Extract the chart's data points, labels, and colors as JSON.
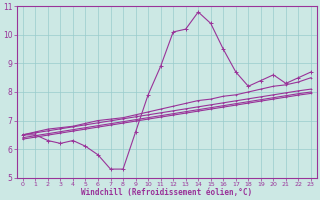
{
  "xlabel": "Windchill (Refroidissement éolien,°C)",
  "bg_color": "#cce8e4",
  "grid_color": "#99cccc",
  "line_color": "#993399",
  "xlim": [
    -0.5,
    23.5
  ],
  "ylim": [
    5,
    11
  ],
  "xticks": [
    0,
    1,
    2,
    3,
    4,
    5,
    6,
    7,
    8,
    9,
    10,
    11,
    12,
    13,
    14,
    15,
    16,
    17,
    18,
    19,
    20,
    21,
    22,
    23
  ],
  "yticks": [
    5,
    6,
    7,
    8,
    9,
    10,
    11
  ],
  "series_main": [
    6.5,
    6.5,
    6.3,
    6.2,
    6.3,
    6.1,
    5.8,
    5.3,
    5.3,
    6.6,
    7.9,
    8.9,
    10.1,
    10.2,
    10.8,
    10.4,
    9.5,
    8.7,
    8.2,
    8.4,
    8.6,
    8.3,
    8.5,
    8.7
  ],
  "series_linear": [
    [
      6.5,
      6.6,
      6.7,
      6.75,
      6.8,
      6.9,
      7.0,
      7.05,
      7.1,
      7.2,
      7.3,
      7.4,
      7.5,
      7.6,
      7.7,
      7.75,
      7.85,
      7.9,
      8.0,
      8.1,
      8.2,
      8.25,
      8.35,
      8.5
    ],
    [
      6.5,
      6.57,
      6.64,
      6.71,
      6.78,
      6.85,
      6.92,
      6.99,
      7.06,
      7.13,
      7.2,
      7.27,
      7.34,
      7.41,
      7.48,
      7.55,
      7.62,
      7.69,
      7.76,
      7.83,
      7.9,
      7.97,
      8.04,
      8.1
    ],
    [
      6.4,
      6.47,
      6.54,
      6.61,
      6.68,
      6.75,
      6.82,
      6.89,
      6.96,
      7.03,
      7.1,
      7.17,
      7.24,
      7.31,
      7.38,
      7.45,
      7.52,
      7.59,
      7.66,
      7.73,
      7.8,
      7.87,
      7.94,
      8.0
    ],
    [
      6.35,
      6.42,
      6.49,
      6.56,
      6.63,
      6.7,
      6.77,
      6.84,
      6.91,
      6.98,
      7.05,
      7.12,
      7.19,
      7.26,
      7.33,
      7.4,
      7.47,
      7.54,
      7.61,
      7.68,
      7.75,
      7.82,
      7.89,
      7.95
    ]
  ]
}
